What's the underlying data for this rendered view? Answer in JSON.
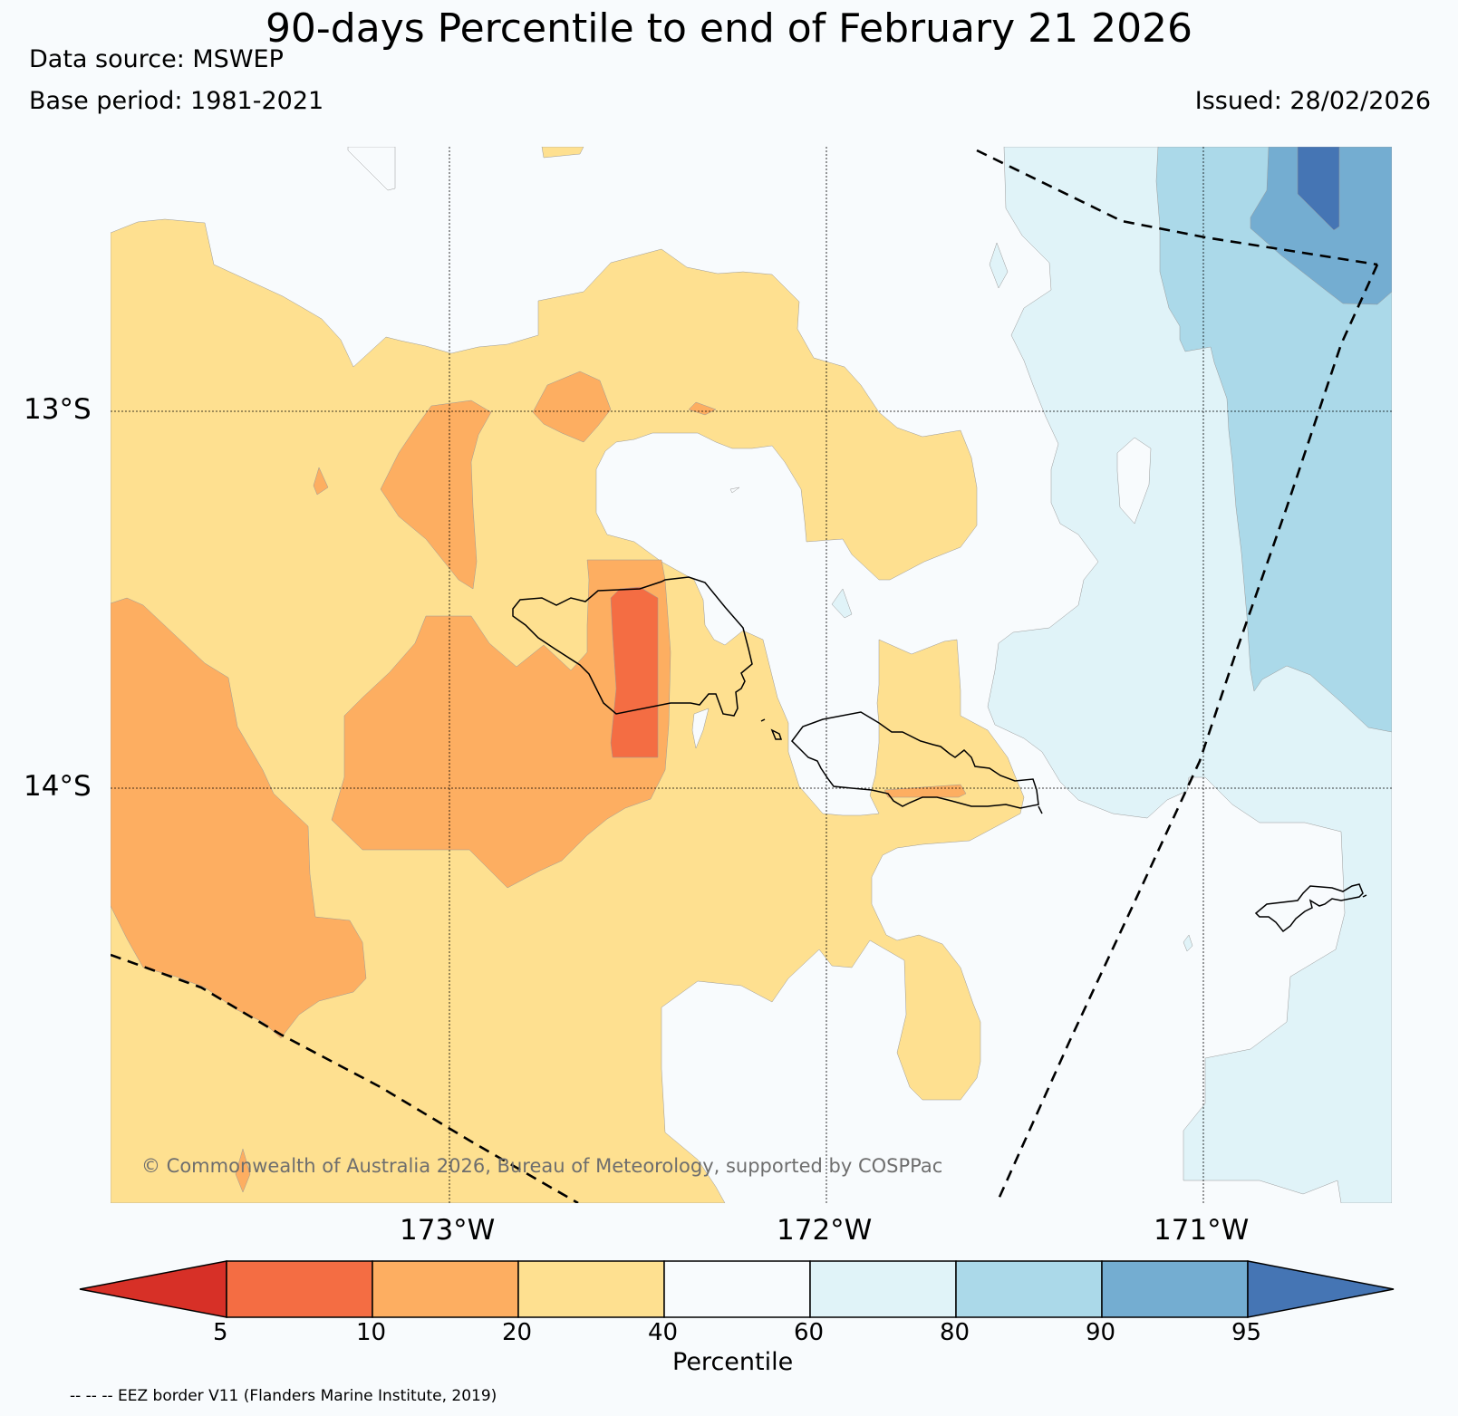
{
  "header": {
    "title": "90-days Percentile to end of February 21 2026",
    "data_source": "Data source: MSWEP",
    "base_period": "Base period: 1981-2021",
    "issued": "Issued: 28/02/2026"
  },
  "map": {
    "lat_labels": [
      "13°S",
      "14°S"
    ],
    "lon_labels": [
      "173°W",
      "172°W",
      "171°W"
    ],
    "copyright": "© Commonwealth of Australia 2026, Bureau of Meteorology, supported by COSPPac",
    "eez_note": "-- -- -- EEZ border V11 (Flanders Marine Institute, 2019)"
  },
  "colorbar": {
    "label": "Percentile",
    "ticks": [
      "5",
      "10",
      "20",
      "40",
      "60",
      "80",
      "90",
      "95"
    ],
    "colors": {
      "below5": "#d73027",
      "p5_10": "#f46d43",
      "p10_20": "#fdae61",
      "p20_40": "#fee090",
      "p40_60": "#f8fbfd",
      "p60_80": "#e0f3f8",
      "p80_90": "#abd9e9",
      "p90_95": "#74add1",
      "above95": "#4575b4"
    }
  }
}
